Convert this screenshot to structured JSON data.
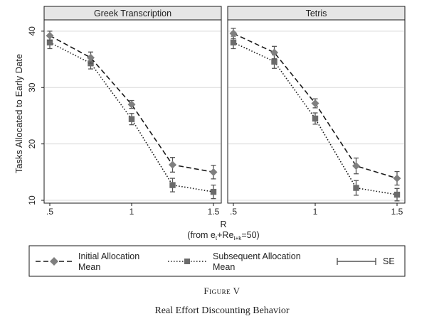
{
  "chart_data": {
    "type": "line",
    "ylabel": "Tasks Allocated to Early Date",
    "xlabel": "R",
    "xlabel_sub": "(from e",
    "xlabel_sub_t": "t",
    "xlabel_sub_mid": "+Re",
    "xlabel_sub_tk": "t+k",
    "xlabel_sub_end": "=50)",
    "x_ticks": [
      ".5",
      "1",
      "1.5"
    ],
    "y_ticks": [
      "10",
      "20",
      "30",
      "40"
    ],
    "xlim": [
      0.5,
      1.5
    ],
    "ylim": [
      9.5,
      42
    ],
    "panels": [
      {
        "title": "Greek Transcription",
        "x": [
          0.5,
          0.75,
          1.0,
          1.25,
          1.5
        ],
        "series": [
          {
            "name": "Initial Allocation Mean",
            "values": [
              39.2,
              35.3,
              27.0,
              16.3,
              15.0
            ],
            "se": [
              0.8,
              1.0,
              0.7,
              1.3,
              1.2
            ]
          },
          {
            "name": "Subsequent Allocation Mean",
            "values": [
              38.0,
              34.3,
              24.4,
              12.7,
              11.5
            ],
            "se": [
              1.1,
              1.0,
              1.0,
              1.2,
              1.2
            ]
          }
        ]
      },
      {
        "title": "Tetris",
        "x": [
          0.5,
          0.75,
          1.0,
          1.25,
          1.5
        ],
        "series": [
          {
            "name": "Initial Allocation Mean",
            "values": [
              39.6,
              36.2,
              27.2,
              16.1,
              13.9
            ],
            "se": [
              0.9,
              1.1,
              0.8,
              1.4,
              1.2
            ]
          },
          {
            "name": "Subsequent Allocation Mean",
            "values": [
              38.0,
              34.6,
              24.5,
              12.2,
              11.0
            ],
            "se": [
              1.1,
              1.2,
              1.0,
              1.3,
              1.1
            ]
          }
        ]
      }
    ],
    "legend": [
      {
        "label_line1": "Initial Allocation",
        "label_line2": "Mean"
      },
      {
        "label_line1": "Subsequent Allocation",
        "label_line2": "Mean"
      },
      {
        "label_line1": "SE"
      }
    ],
    "legend_position": "bottom",
    "grid": true,
    "colors": {
      "initial": "#7f7f7f",
      "subsequent": "#6b6b6b",
      "line": "#1a1a1a",
      "header_bg": "#e6e6e6",
      "grid": "#d9d9d9"
    }
  },
  "caption": {
    "figure_label": "Figure V",
    "title": "Real Effort Discounting Behavior"
  }
}
